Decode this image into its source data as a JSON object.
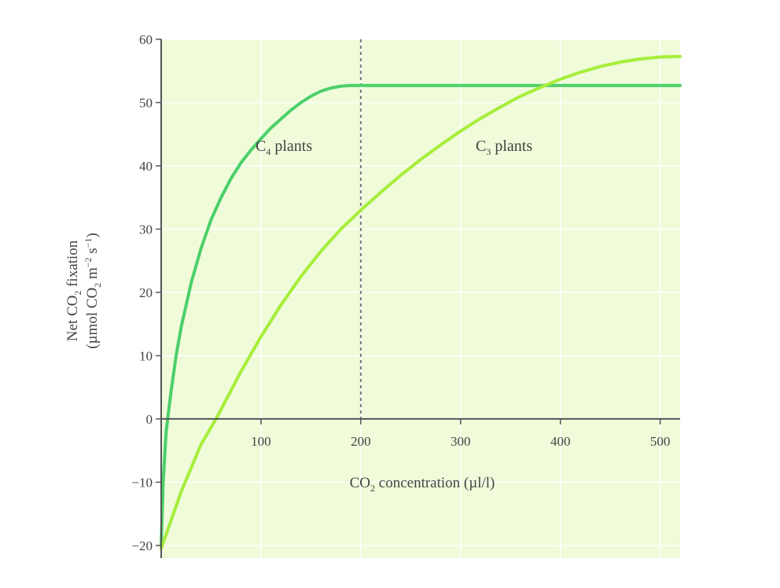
{
  "chart_data": {
    "type": "line",
    "x_axis": {
      "label": {
        "main": "CO",
        "sub": "2",
        "rest": " concentration (µl/l)"
      },
      "range": [
        0,
        520
      ],
      "ticks": [
        100,
        200,
        300,
        400,
        500
      ],
      "tick_labels": [
        "100",
        "200",
        "300",
        "400",
        "500"
      ]
    },
    "y_axis": {
      "label_line1": {
        "main": "Net CO",
        "sub": "2",
        "rest": " fixation"
      },
      "label_line2": {
        "a": "(µmol CO",
        "sub": "2",
        "b": " m",
        "sup1": "−2",
        "c": " s",
        "sup2": "−1",
        "d": ")"
      },
      "range": [
        -22,
        60
      ],
      "ticks": [
        -20,
        -10,
        0,
        10,
        20,
        30,
        40,
        50,
        60
      ],
      "tick_labels": [
        "−20",
        "−10",
        "0",
        "10",
        "20",
        "30",
        "40",
        "50",
        "60"
      ]
    },
    "grid": true,
    "reference_line": {
      "x": 200,
      "style": "dashed"
    },
    "series": [
      {
        "name": "C4 plants",
        "label": {
          "main": "C",
          "sub": "4",
          "rest": " plants"
        },
        "color": "#4cd06a",
        "x": [
          0,
          2,
          5,
          10,
          15,
          20,
          30,
          40,
          50,
          60,
          70,
          80,
          90,
          100,
          110,
          120,
          130,
          140,
          150,
          160,
          170,
          180,
          190,
          200,
          300,
          400,
          520
        ],
        "y": [
          -20,
          -10,
          -2,
          4.5,
          10,
          14.5,
          21.5,
          27,
          31.5,
          35,
          38,
          40.5,
          42.5,
          44.3,
          46,
          47.4,
          48.8,
          50,
          51,
          51.8,
          52.3,
          52.6,
          52.7,
          52.7,
          52.7,
          52.7,
          52.7
        ]
      },
      {
        "name": "C3 plants",
        "label": {
          "main": "C",
          "sub": "3",
          "rest": " plants"
        },
        "color": "#a6ee3a",
        "x": [
          0,
          20,
          40,
          55,
          80,
          100,
          120,
          140,
          160,
          180,
          200,
          220,
          240,
          260,
          280,
          300,
          320,
          340,
          360,
          380,
          400,
          420,
          440,
          460,
          480,
          500,
          520
        ],
        "y": [
          -20.5,
          -11.5,
          -4,
          0,
          7.5,
          13,
          18,
          22.5,
          26.5,
          30,
          33,
          35.8,
          38.5,
          41,
          43.3,
          45.5,
          47.5,
          49.3,
          51,
          52.4,
          53.7,
          54.8,
          55.7,
          56.4,
          56.9,
          57.2,
          57.3
        ]
      }
    ],
    "colors": {
      "plot_background": "#effbd9",
      "grid": "#ffffff",
      "axis": "#555555",
      "reference_line": "#777777"
    }
  }
}
